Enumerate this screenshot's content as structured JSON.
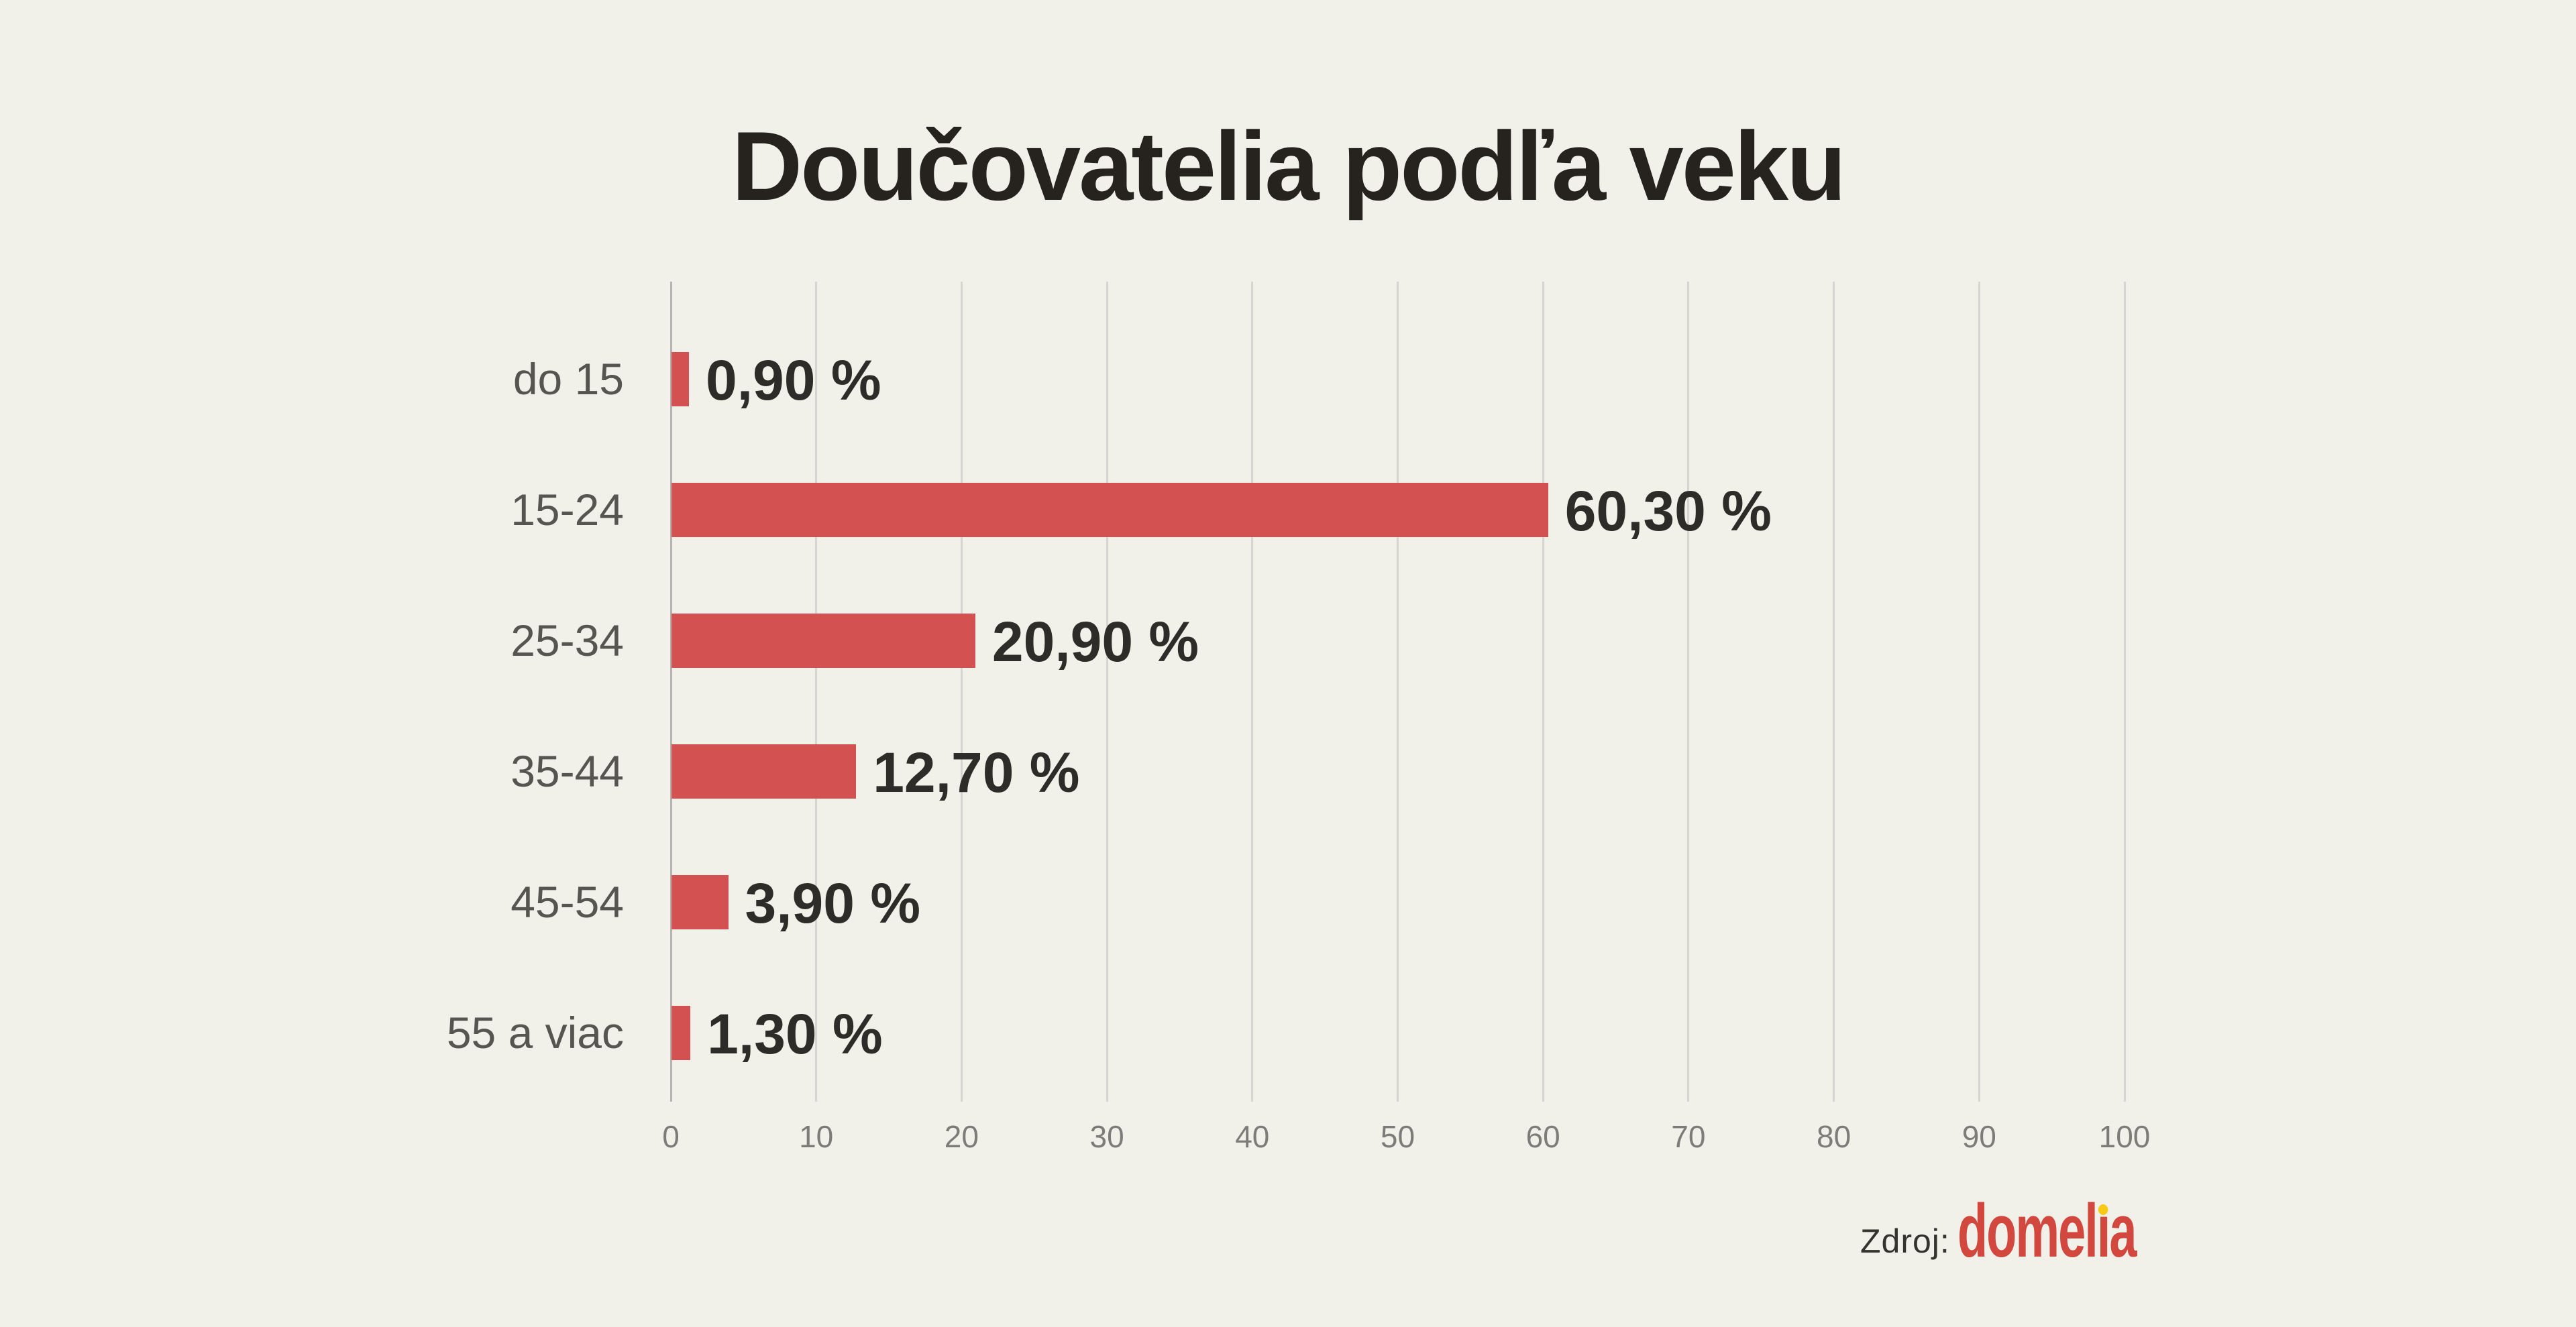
{
  "title": "Doučovatelia podľa veku",
  "chart_data": {
    "type": "bar",
    "orientation": "horizontal",
    "title": "Doučovatelia podľa veku",
    "categories": [
      "do 15",
      "15-24",
      "25-34",
      "35-44",
      "45-54",
      "55 a viac"
    ],
    "values": [
      0.9,
      60.3,
      20.9,
      12.7,
      3.9,
      1.3
    ],
    "value_labels": [
      "0,90 %",
      "60,30 %",
      "20,90 %",
      "12,70 %",
      "3,90 %",
      "1,30 %"
    ],
    "xlabel": "",
    "ylabel": "",
    "xlim": [
      0,
      100
    ],
    "x_ticks": [
      0,
      10,
      20,
      30,
      40,
      50,
      60,
      70,
      80,
      90,
      100
    ],
    "grid": true,
    "legend": "none",
    "bar_color": "#d45152"
  },
  "source": {
    "label": "Zdroj:",
    "brand": "domelia"
  },
  "colors": {
    "background": "#f1f0e9",
    "bar": "#d45152",
    "title_text": "#26231e",
    "category_text": "#575550",
    "value_text": "#2e2c28",
    "tick_text": "#7d7c78",
    "gridline": "#d6d5d1",
    "zero_line": "#b6b5b1",
    "brand_red": "#d2483f",
    "brand_dot_yellow": "#f6ca15"
  }
}
